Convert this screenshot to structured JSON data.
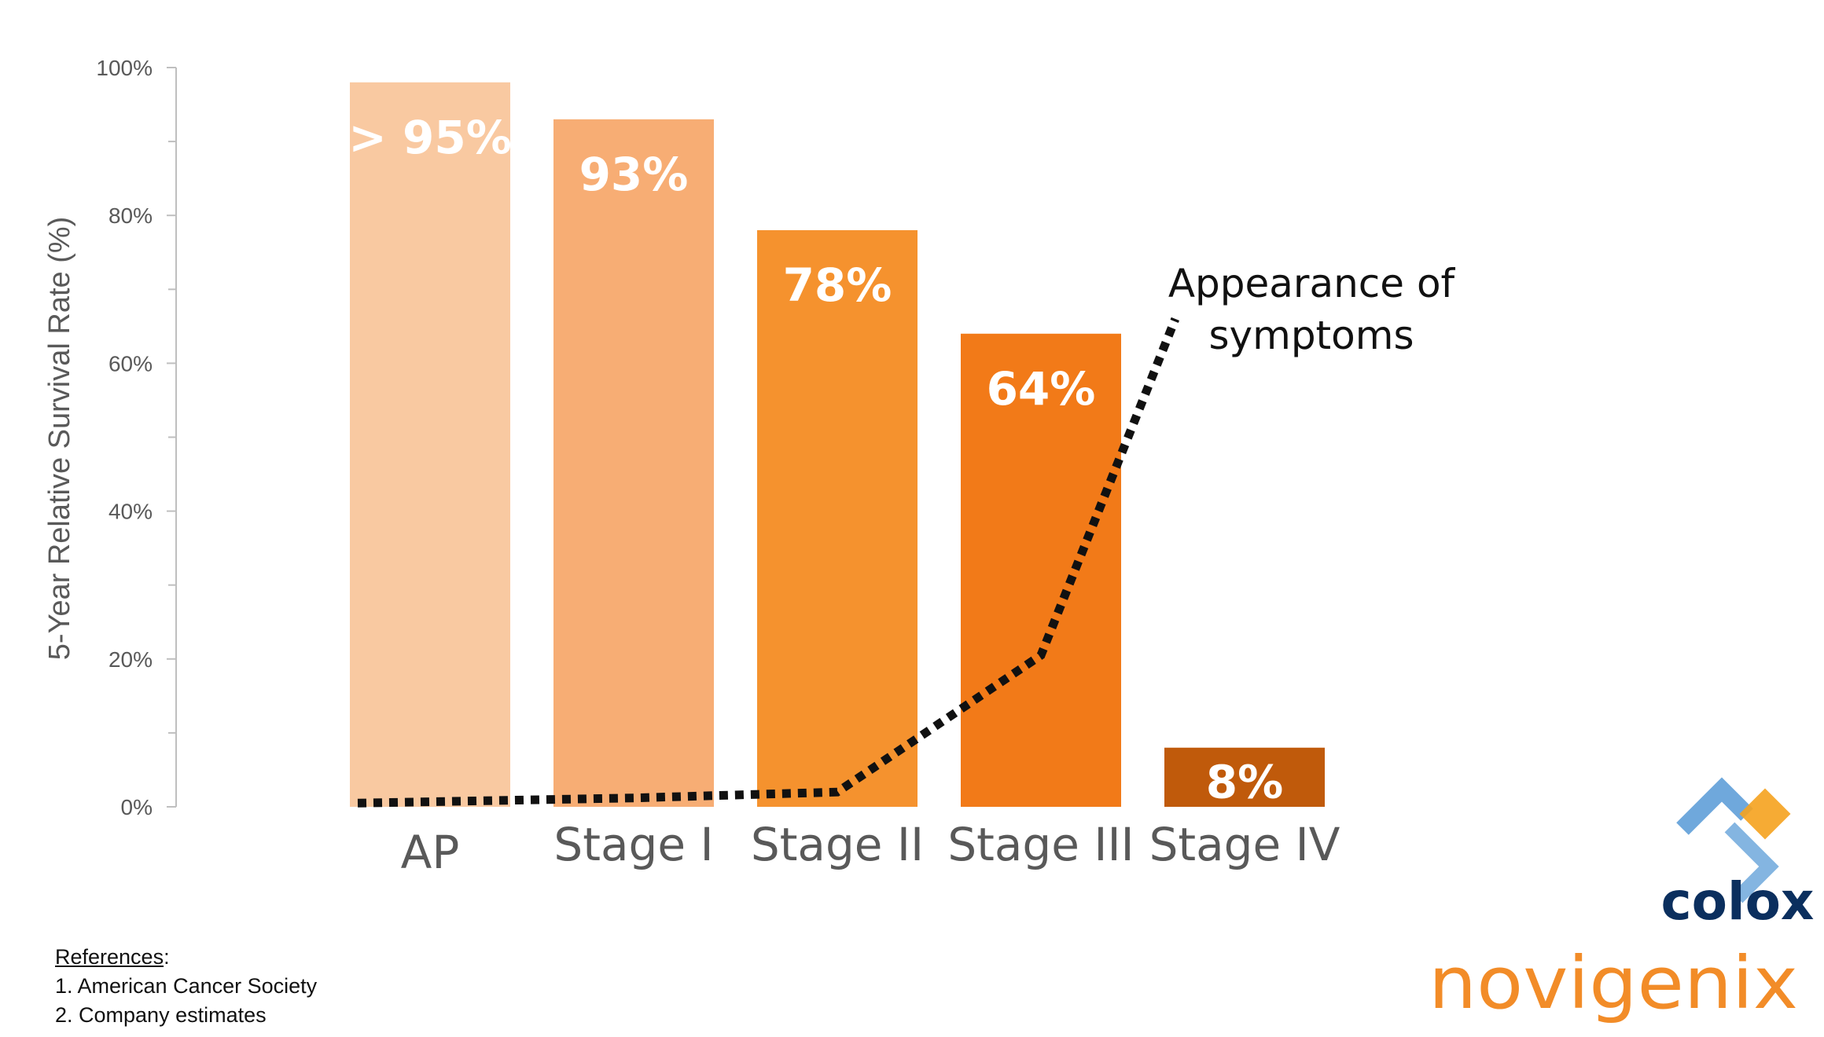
{
  "chart_data": {
    "type": "bar",
    "categories": [
      "AP",
      "Stage I",
      "Stage II",
      "Stage III",
      "Stage IV"
    ],
    "values": [
      98,
      93,
      78,
      64,
      8
    ],
    "data_labels": [
      "> 95%",
      "93%",
      "78%",
      "64%",
      "8%"
    ],
    "colors": [
      "#f9c9a1",
      "#f7ad74",
      "#f5922e",
      "#f27a18",
      "#c05a0b"
    ],
    "ylabel": "5-Year Relative Survival Rate (%)",
    "xlabel": "",
    "ylim": [
      0,
      100
    ],
    "yticks": [
      "0%",
      "20%",
      "40%",
      "60%",
      "80%",
      "100%"
    ],
    "grid": false,
    "symptom_curve": {
      "style": "dotted",
      "color": "#111111",
      "points": [
        [
          0,
          0.5
        ],
        [
          1,
          1.2
        ],
        [
          2,
          2
        ],
        [
          3,
          20.5
        ],
        [
          3.66,
          66
        ]
      ]
    },
    "annotation": {
      "lines": [
        "Appearance of",
        "symptoms"
      ]
    }
  },
  "references": {
    "heading": "References",
    "items": [
      "1. American Cancer Society",
      "2. Company estimates"
    ]
  },
  "logos": {
    "colox": {
      "text": "colox",
      "colors": [
        "#6fa8dc",
        "#f5a21e",
        "#0b2f5e"
      ]
    },
    "novigenix": {
      "text": "novigenix",
      "color": "#f28c28"
    }
  }
}
